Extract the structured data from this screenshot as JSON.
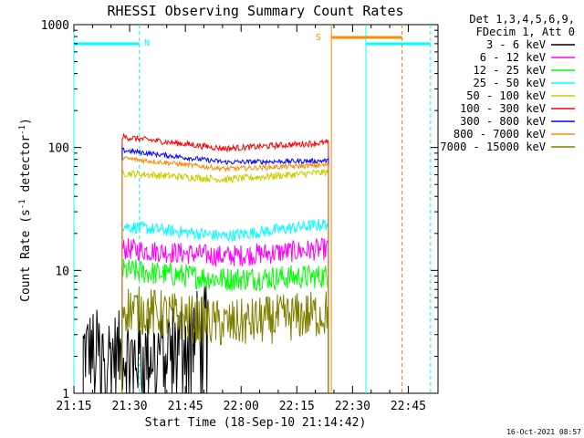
{
  "chart_data": {
    "type": "line",
    "title": "RHESSI Observing Summary Count Rates",
    "xlabel": "Start Time (18-Sep-10 21:14:42)",
    "ylabel_pre": "Count Rate (s",
    "ylabel_sup1": "-1",
    "ylabel_mid": " detector",
    "ylabel_sup2": "-1",
    "ylabel_post": ")",
    "y_scale": "log",
    "ylim": [
      1,
      1000
    ],
    "xlim_minutes": [
      0,
      98
    ],
    "xticks": [
      {
        "label": "21:15",
        "m": 0
      },
      {
        "label": "21:30",
        "m": 15
      },
      {
        "label": "21:45",
        "m": 30
      },
      {
        "label": "22:00",
        "m": 45
      },
      {
        "label": "22:15",
        "m": 60
      },
      {
        "label": "22:30",
        "m": 75
      },
      {
        "label": "22:45",
        "m": 90
      }
    ],
    "yticks": [
      {
        "label": "1",
        "v": 1
      },
      {
        "label": "10",
        "v": 10
      },
      {
        "label": "100",
        "v": 100
      },
      {
        "label": "1000",
        "v": 1000
      }
    ],
    "legend_header": [
      "Det 1,3,4,5,6,9,",
      "FDecim 1, Att 0"
    ],
    "legend_placement": "top-right, outside plot",
    "series": [
      {
        "name": "3 - 6 keV",
        "color": "#000000",
        "start": 2.5,
        "end": 36,
        "v0": 2.3,
        "vmid": 2.0,
        "v1": 3.5,
        "noise": 0.35,
        "dropouts": true
      },
      {
        "name": "6 - 12 keV",
        "color": "#ff00ff",
        "start": 13,
        "end": 68.5,
        "v0": 15,
        "vmid": 13,
        "v1": 15,
        "noise": 0.09
      },
      {
        "name": "12 - 25 keV",
        "color": "#00ff00",
        "start": 13,
        "end": 68.5,
        "v0": 10,
        "vmid": 8.5,
        "v1": 9,
        "noise": 0.1
      },
      {
        "name": "25 - 50 keV",
        "color": "#00ffff",
        "start": 13,
        "end": 68.5,
        "v0": 23,
        "vmid": 19,
        "v1": 24,
        "noise": 0.05
      },
      {
        "name": "50 - 100 keV",
        "color": "#cccc00",
        "start": 13,
        "end": 68.5,
        "v0": 62,
        "vmid": 55,
        "v1": 63,
        "noise": 0.03
      },
      {
        "name": "100 - 300 keV",
        "color": "#ff0000",
        "start": 13,
        "end": 68.5,
        "v0": 122,
        "vmid": 98,
        "v1": 110,
        "noise": 0.025
      },
      {
        "name": "300 - 800 keV",
        "color": "#0000ff",
        "start": 13,
        "end": 68.5,
        "v0": 95,
        "vmid": 76,
        "v1": 78,
        "noise": 0.02
      },
      {
        "name": "800 - 7000 keV",
        "color": "#ff8800",
        "start": 13,
        "end": 68.5,
        "v0": 82,
        "vmid": 67,
        "v1": 72,
        "noise": 0.02
      },
      {
        "name": "7000 - 15000 keV",
        "color": "#808000",
        "start": 13,
        "end": 68.5,
        "v0": 5,
        "vmid": 3.6,
        "v1": 4.5,
        "noise": 0.2
      }
    ],
    "annotations": [
      {
        "text": "N",
        "color": "#00ffff"
      },
      {
        "text": "S",
        "color": "#ff8800"
      }
    ],
    "timestamp": "16-Oct-2021 08:57"
  }
}
